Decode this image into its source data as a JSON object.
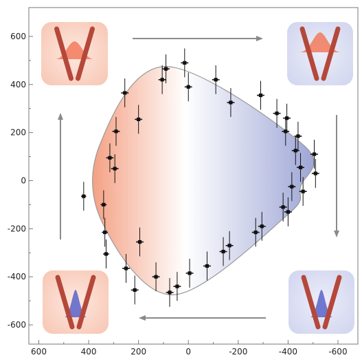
{
  "chart_data": {
    "type": "scatter",
    "title": "",
    "xlabel": "",
    "ylabel": "",
    "xlim": [
      640,
      -680
    ],
    "ylim": [
      -680,
      720
    ],
    "x_ticks": [
      600,
      400,
      200,
      0,
      -200,
      -400,
      -600
    ],
    "x_tick_labels": [
      "600",
      "400",
      "200",
      "0",
      "-200",
      "-400",
      "-600"
    ],
    "y_ticks": [
      600,
      400,
      200,
      0,
      -200,
      -400,
      -600
    ],
    "y_tick_labels": [
      "600",
      "400",
      "200",
      "0",
      "-200",
      "-400",
      "-600"
    ],
    "grid": false,
    "colors": {
      "frame": "#777777",
      "left_fill": "#f4a184",
      "mid_fill": "#ffffff",
      "right_fill": "#9ea6d6",
      "points": "#111111",
      "arrows": "#8a8a8a",
      "rod": "#b4483a",
      "red_wave": "#f27a5c",
      "blue_wave": "#5b63c8",
      "inset_red_bg": "#f8c8b6",
      "inset_blue_bg": "#d2d6ef"
    },
    "points": [
      {
        "x": 420,
        "y": -65,
        "ex": 10,
        "ey": 60
      },
      {
        "x": 340,
        "y": -100,
        "ex": 12,
        "ey": 60
      },
      {
        "x": 335,
        "y": -215,
        "ex": 12,
        "ey": 60
      },
      {
        "x": 330,
        "y": -305,
        "ex": 12,
        "ey": 60
      },
      {
        "x": 315,
        "y": 95,
        "ex": 15,
        "ey": 60
      },
      {
        "x": 295,
        "y": 50,
        "ex": 15,
        "ey": 60
      },
      {
        "x": 290,
        "y": 205,
        "ex": 15,
        "ey": 60
      },
      {
        "x": 255,
        "y": 365,
        "ex": 15,
        "ey": 60
      },
      {
        "x": 200,
        "y": 255,
        "ex": 15,
        "ey": 60
      },
      {
        "x": 195,
        "y": -255,
        "ex": 15,
        "ey": 60
      },
      {
        "x": 250,
        "y": -365,
        "ex": 15,
        "ey": 60
      },
      {
        "x": 215,
        "y": -455,
        "ex": 15,
        "ey": 60
      },
      {
        "x": 130,
        "y": -400,
        "ex": 15,
        "ey": 60
      },
      {
        "x": 105,
        "y": 420,
        "ex": 15,
        "ey": 60
      },
      {
        "x": 90,
        "y": 465,
        "ex": 15,
        "ey": 60
      },
      {
        "x": 75,
        "y": -465,
        "ex": 15,
        "ey": 60
      },
      {
        "x": 45,
        "y": -440,
        "ex": 15,
        "ey": 60
      },
      {
        "x": 15,
        "y": 490,
        "ex": 15,
        "ey": 60
      },
      {
        "x": 0,
        "y": 390,
        "ex": 15,
        "ey": 60
      },
      {
        "x": -5,
        "y": -385,
        "ex": 15,
        "ey": 60
      },
      {
        "x": -110,
        "y": 420,
        "ex": 15,
        "ey": 60
      },
      {
        "x": -75,
        "y": -355,
        "ex": 15,
        "ey": 60
      },
      {
        "x": -140,
        "y": -295,
        "ex": 15,
        "ey": 60
      },
      {
        "x": -165,
        "y": -270,
        "ex": 15,
        "ey": 60
      },
      {
        "x": -170,
        "y": 325,
        "ex": 15,
        "ey": 60
      },
      {
        "x": -290,
        "y": 355,
        "ex": 15,
        "ey": 60
      },
      {
        "x": -270,
        "y": -215,
        "ex": 15,
        "ey": 60
      },
      {
        "x": -295,
        "y": -190,
        "ex": 15,
        "ey": 60
      },
      {
        "x": -355,
        "y": 280,
        "ex": 15,
        "ey": 60
      },
      {
        "x": -395,
        "y": 260,
        "ex": 15,
        "ey": 60
      },
      {
        "x": -390,
        "y": 205,
        "ex": 15,
        "ey": 60
      },
      {
        "x": -380,
        "y": -110,
        "ex": 15,
        "ey": 60
      },
      {
        "x": -400,
        "y": -130,
        "ex": 15,
        "ey": 60
      },
      {
        "x": -415,
        "y": -25,
        "ex": 15,
        "ey": 60
      },
      {
        "x": -440,
        "y": 185,
        "ex": 15,
        "ey": 60
      },
      {
        "x": -430,
        "y": 125,
        "ex": 15,
        "ey": 60
      },
      {
        "x": -450,
        "y": 55,
        "ex": 15,
        "ey": 60
      },
      {
        "x": -460,
        "y": -45,
        "ex": 15,
        "ey": 60
      },
      {
        "x": -505,
        "y": 110,
        "ex": 15,
        "ey": 60
      },
      {
        "x": -510,
        "y": 30,
        "ex": 15,
        "ey": 60
      }
    ],
    "envelope": [
      [
        90,
        475
      ],
      [
        -465,
        145
      ],
      [
        -450,
        -25
      ],
      [
        -395,
        -145
      ],
      [
        60,
        -475
      ],
      [
        345,
        -175
      ],
      [
        355,
        150
      ]
    ]
  }
}
